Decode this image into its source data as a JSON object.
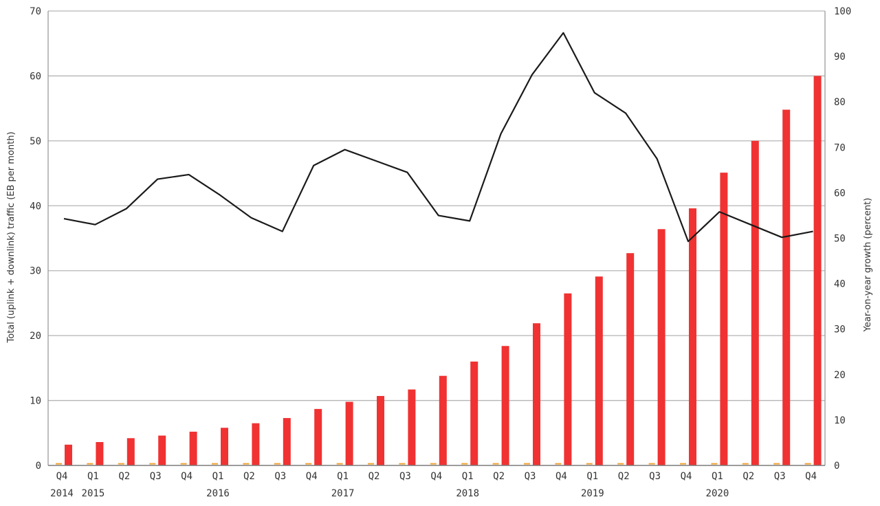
{
  "chart_data": {
    "type": "bar",
    "title": "",
    "categories": [
      "Q4",
      "Q1",
      "Q2",
      "Q3",
      "Q4",
      "Q1",
      "Q2",
      "Q3",
      "Q4",
      "Q1",
      "Q2",
      "Q3",
      "Q4",
      "Q1",
      "Q2",
      "Q3",
      "Q4",
      "Q1",
      "Q2",
      "Q3",
      "Q4",
      "Q1",
      "Q2",
      "Q3",
      "Q4"
    ],
    "year_labels": [
      {
        "index": 0,
        "label": "2014"
      },
      {
        "index": 1,
        "label": "2015"
      },
      {
        "index": 5,
        "label": "2016"
      },
      {
        "index": 9,
        "label": "2017"
      },
      {
        "index": 13,
        "label": "2018"
      },
      {
        "index": 17,
        "label": "2019"
      },
      {
        "index": 21,
        "label": "2020"
      }
    ],
    "series": [
      {
        "axis": "left",
        "type": "bar",
        "color": "#f03232",
        "values": [
          3.2,
          3.6,
          4.2,
          4.6,
          5.2,
          5.8,
          6.5,
          7.3,
          8.7,
          9.8,
          10.7,
          11.7,
          13.8,
          16.0,
          18.4,
          21.9,
          26.5,
          29.1,
          32.7,
          36.4,
          39.6,
          45.1,
          50.0,
          54.8,
          60.0
        ]
      },
      {
        "axis": "left",
        "type": "bar",
        "color": "#f0a030",
        "values": [
          0.2,
          0.2,
          0.2,
          0.2,
          0.2,
          0.2,
          0.2,
          0.2,
          0.2,
          0.2,
          0.2,
          0.2,
          0.2,
          0.2,
          0.2,
          0.2,
          0.2,
          0.2,
          0.2,
          0.2,
          0.2,
          0.2,
          0.2,
          0.2,
          0.2
        ]
      },
      {
        "axis": "right",
        "type": "line",
        "color": "#1a1a1a",
        "values": [
          54.3,
          53.0,
          56.5,
          63.0,
          64.0,
          59.5,
          54.5,
          51.5,
          66.0,
          69.5,
          67.0,
          64.5,
          55.0,
          53.8,
          73.0,
          86.0,
          95.2,
          82.0,
          77.5,
          67.5,
          49.3,
          55.8,
          53.0,
          50.2,
          51.5
        ]
      }
    ],
    "ylabel": "Total (uplink + downlink) traffic (EB per month)",
    "y2label": "Year-on-year growth (percent)",
    "xlabel": "",
    "ylim": [
      0,
      70
    ],
    "y2lim": [
      0,
      100
    ],
    "yticks": [
      0,
      10,
      20,
      30,
      40,
      50,
      60,
      70
    ],
    "y2ticks": [
      0,
      10,
      20,
      30,
      40,
      50,
      60,
      70,
      80,
      90,
      100
    ],
    "grid": true,
    "legend": "none"
  }
}
